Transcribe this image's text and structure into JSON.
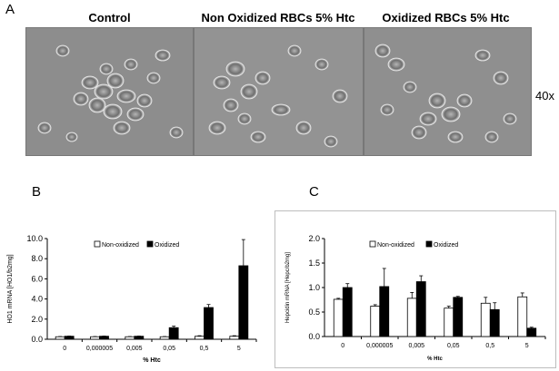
{
  "panel_a": {
    "letter": "A",
    "images": [
      {
        "title": "Control"
      },
      {
        "title": "Non Oxidized RBCs 5% Htc"
      },
      {
        "title": "Oxidized RBCs 5% Htc"
      }
    ],
    "magnification": "40x"
  },
  "panel_b": {
    "letter": "B"
  },
  "panel_c": {
    "letter": "C"
  },
  "chart_data": [
    {
      "type": "bar",
      "panel": "B",
      "categories": [
        "0",
        "0,000005",
        "0,005",
        "0,05",
        "0,5",
        "5"
      ],
      "series": [
        {
          "name": "Non-oxidized",
          "color": "#ffffff",
          "values": [
            0.25,
            0.25,
            0.25,
            0.25,
            0.3,
            0.3
          ],
          "errors": [
            0.02,
            0.02,
            0.02,
            0.02,
            0.05,
            0.05
          ]
        },
        {
          "name": "Oxidized",
          "color": "#000000",
          "values": [
            0.3,
            0.3,
            0.3,
            1.15,
            3.15,
            7.3
          ],
          "errors": [
            0.02,
            0.02,
            0.02,
            0.15,
            0.3,
            2.6
          ]
        }
      ],
      "xlabel": "% Htc",
      "ylabel": "HO1 mRNA [HO1/b2mg]",
      "ylim": [
        0,
        10
      ],
      "yticks": [
        "0.0",
        "2.0",
        "4.0",
        "6.0",
        "8.0",
        "10.0"
      ],
      "legend": "top"
    },
    {
      "type": "bar",
      "panel": "C",
      "categories": [
        "0",
        "0,000005",
        "0,005",
        "0,05",
        "0,5",
        "5"
      ],
      "series": [
        {
          "name": "Non-oxidized",
          "color": "#ffffff",
          "values": [
            0.76,
            0.62,
            0.78,
            0.58,
            0.68,
            0.81
          ],
          "errors": [
            0.02,
            0.03,
            0.12,
            0.04,
            0.12,
            0.08
          ]
        },
        {
          "name": "Oxidized",
          "color": "#000000",
          "values": [
            1.0,
            1.02,
            1.12,
            0.8,
            0.55,
            0.17
          ],
          "errors": [
            0.08,
            0.37,
            0.12,
            0.02,
            0.14,
            0.02
          ]
        }
      ],
      "xlabel": "% Htc",
      "ylabel": "Hepcidin mRNA [Hepc/b2mg]",
      "ylim": [
        0,
        2
      ],
      "yticks": [
        "0.0",
        "0.5",
        "1.0",
        "1.5",
        "2.0"
      ],
      "legend": "top"
    }
  ]
}
